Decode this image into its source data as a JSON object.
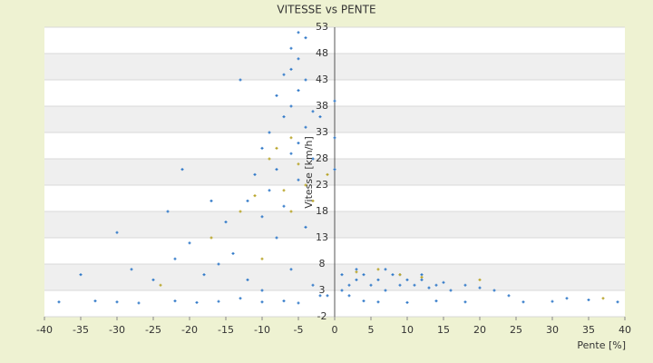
{
  "chart_data": {
    "type": "scatter",
    "title": "VITESSE vs PENTE",
    "x_label": "Pente [%]",
    "y_label": "Vitesse [km/h]",
    "xlim": [
      -40,
      40
    ],
    "xticks": [
      -40,
      -35,
      -30,
      -25,
      -20,
      -15,
      -10,
      -5,
      0,
      5,
      10,
      15,
      20,
      25,
      30,
      35,
      40
    ],
    "ylim": [
      -2,
      53
    ],
    "yticks": [
      -2,
      3,
      8,
      13,
      18,
      23,
      28,
      33,
      38,
      43,
      48,
      53
    ],
    "series": [
      {
        "color": "#2f78c8",
        "x": [
          -5,
          -4,
          -6,
          -5,
          -6,
          -7,
          -4,
          -5,
          -8,
          -6,
          -3,
          -7,
          -4,
          -9,
          -5,
          -10,
          -6,
          -3,
          -8,
          -11,
          -5,
          -9,
          -13,
          -2,
          -12,
          -7,
          -10,
          -15,
          -4,
          -8,
          -30,
          -35,
          -28,
          -25,
          -22,
          -20,
          -18,
          -16,
          -14,
          -12,
          -10,
          -6,
          -3,
          -1,
          -33,
          -38,
          -30,
          -27,
          -22,
          -19,
          -16,
          -13,
          -10,
          -7,
          -5,
          -2,
          -21,
          -17,
          -23,
          1,
          2,
          3,
          4,
          5,
          6,
          7,
          8,
          9,
          10,
          11,
          12,
          13,
          14,
          15,
          16,
          18,
          20,
          22,
          24,
          2,
          4,
          6,
          10,
          14,
          18,
          26,
          30,
          32,
          35,
          39,
          0,
          0,
          0,
          1,
          3,
          7,
          9,
          12
        ],
        "values": [
          52,
          51,
          49,
          47,
          45,
          44,
          43,
          41,
          40,
          38,
          37,
          36,
          34,
          33,
          31,
          30,
          29,
          28,
          26,
          25,
          24,
          22,
          43,
          36,
          20,
          19,
          17,
          16,
          15,
          13,
          14,
          6,
          7,
          5,
          9,
          12,
          6,
          8,
          10,
          5,
          3,
          7,
          4,
          2,
          1,
          0.8,
          0.8,
          0.6,
          1,
          0.7,
          0.9,
          1.5,
          0.8,
          1,
          0.6,
          2,
          26,
          20,
          18,
          6,
          4,
          5,
          6,
          4,
          5,
          3,
          6,
          4,
          5,
          4,
          5,
          3.5,
          4,
          4.5,
          3,
          4,
          3.5,
          3,
          2,
          2,
          1,
          0.8,
          0.7,
          1,
          0.8,
          0.8,
          0.9,
          1.5,
          1.2,
          0.8,
          39,
          32,
          26,
          3,
          7,
          7,
          6,
          6
        ]
      },
      {
        "color": "#b8a428",
        "x": [
          -6,
          -8,
          -5,
          -9,
          -4,
          -7,
          -11,
          -13,
          -6,
          -3,
          -17,
          -10,
          3,
          6,
          9,
          12,
          -1,
          20,
          37,
          -24
        ],
        "values": [
          32,
          30,
          27,
          28,
          23,
          22,
          21,
          18,
          18,
          20,
          13,
          9,
          6.5,
          7,
          6,
          5.5,
          25,
          5,
          1.5,
          4
        ]
      }
    ]
  }
}
